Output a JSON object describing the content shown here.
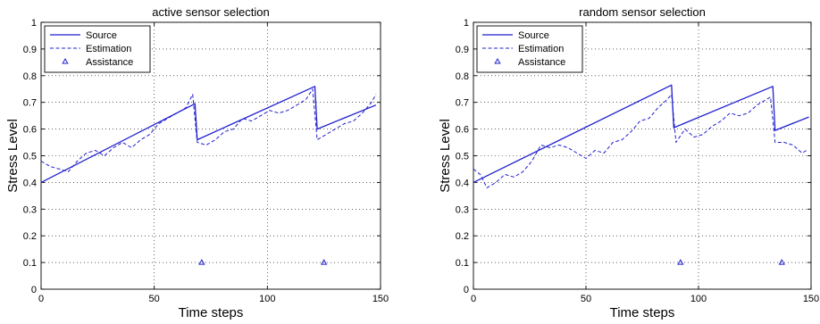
{
  "chart_data": [
    {
      "type": "line",
      "title": "active sensor selection",
      "xlabel": "Time steps",
      "ylabel": "Stress Level",
      "xlim": [
        0,
        150
      ],
      "ylim": [
        0,
        1
      ],
      "xticks": [
        0,
        50,
        100,
        150
      ],
      "yticks": [
        0,
        0.1,
        0.2,
        0.3,
        0.4,
        0.5,
        0.6,
        0.7,
        0.8,
        0.9,
        1
      ],
      "grid": true,
      "legend_position": "top-left",
      "color": "#1f1fd0",
      "series": [
        {
          "name": "Source",
          "style": "solid",
          "x": [
            0,
            68,
            69,
            121,
            122,
            148
          ],
          "y": [
            0.4,
            0.695,
            0.56,
            0.76,
            0.6,
            0.69
          ]
        },
        {
          "name": "Estimation",
          "style": "dashed",
          "x": [
            0,
            4,
            8,
            12,
            16,
            20,
            24,
            28,
            32,
            36,
            40,
            44,
            48,
            52,
            56,
            60,
            64,
            67,
            69,
            73,
            77,
            81,
            85,
            89,
            93,
            97,
            101,
            105,
            109,
            113,
            117,
            120,
            122,
            126,
            130,
            134,
            138,
            142,
            146,
            148
          ],
          "y": [
            0.48,
            0.46,
            0.45,
            0.44,
            0.48,
            0.51,
            0.52,
            0.5,
            0.53,
            0.55,
            0.53,
            0.56,
            0.58,
            0.62,
            0.64,
            0.66,
            0.68,
            0.73,
            0.55,
            0.54,
            0.56,
            0.59,
            0.6,
            0.64,
            0.63,
            0.65,
            0.67,
            0.66,
            0.67,
            0.69,
            0.71,
            0.75,
            0.56,
            0.58,
            0.6,
            0.62,
            0.63,
            0.66,
            0.7,
            0.73
          ]
        },
        {
          "name": "Assistance",
          "style": "triangle-markers",
          "x": [
            71,
            125
          ],
          "y": [
            0.1,
            0.1
          ]
        }
      ]
    },
    {
      "type": "line",
      "title": "random sensor selection",
      "xlabel": "Time steps",
      "ylabel": "Stress Level",
      "xlim": [
        0,
        150
      ],
      "ylim": [
        0,
        1
      ],
      "xticks": [
        0,
        50,
        100,
        150
      ],
      "yticks": [
        0,
        0.1,
        0.2,
        0.3,
        0.4,
        0.5,
        0.6,
        0.7,
        0.8,
        0.9,
        1
      ],
      "grid": true,
      "legend_position": "top-left",
      "color": "#1f1fd0",
      "series": [
        {
          "name": "Source",
          "style": "solid",
          "x": [
            0,
            88,
            89,
            133,
            134,
            149
          ],
          "y": [
            0.4,
            0.765,
            0.605,
            0.76,
            0.595,
            0.645
          ]
        },
        {
          "name": "Estimation",
          "style": "dashed",
          "x": [
            0,
            3,
            6,
            10,
            14,
            18,
            22,
            26,
            30,
            34,
            38,
            42,
            46,
            50,
            54,
            58,
            62,
            66,
            70,
            74,
            78,
            82,
            86,
            88,
            90,
            94,
            98,
            102,
            106,
            110,
            114,
            118,
            122,
            126,
            130,
            132,
            134,
            138,
            142,
            146,
            148
          ],
          "y": [
            0.45,
            0.43,
            0.38,
            0.4,
            0.43,
            0.42,
            0.44,
            0.48,
            0.54,
            0.53,
            0.54,
            0.53,
            0.51,
            0.49,
            0.52,
            0.51,
            0.55,
            0.56,
            0.59,
            0.63,
            0.64,
            0.68,
            0.71,
            0.73,
            0.55,
            0.6,
            0.57,
            0.58,
            0.61,
            0.63,
            0.66,
            0.65,
            0.66,
            0.69,
            0.71,
            0.72,
            0.55,
            0.55,
            0.54,
            0.51,
            0.52
          ]
        },
        {
          "name": "Assistance",
          "style": "triangle-markers",
          "x": [
            92,
            137
          ],
          "y": [
            0.1,
            0.1
          ]
        }
      ]
    }
  ]
}
